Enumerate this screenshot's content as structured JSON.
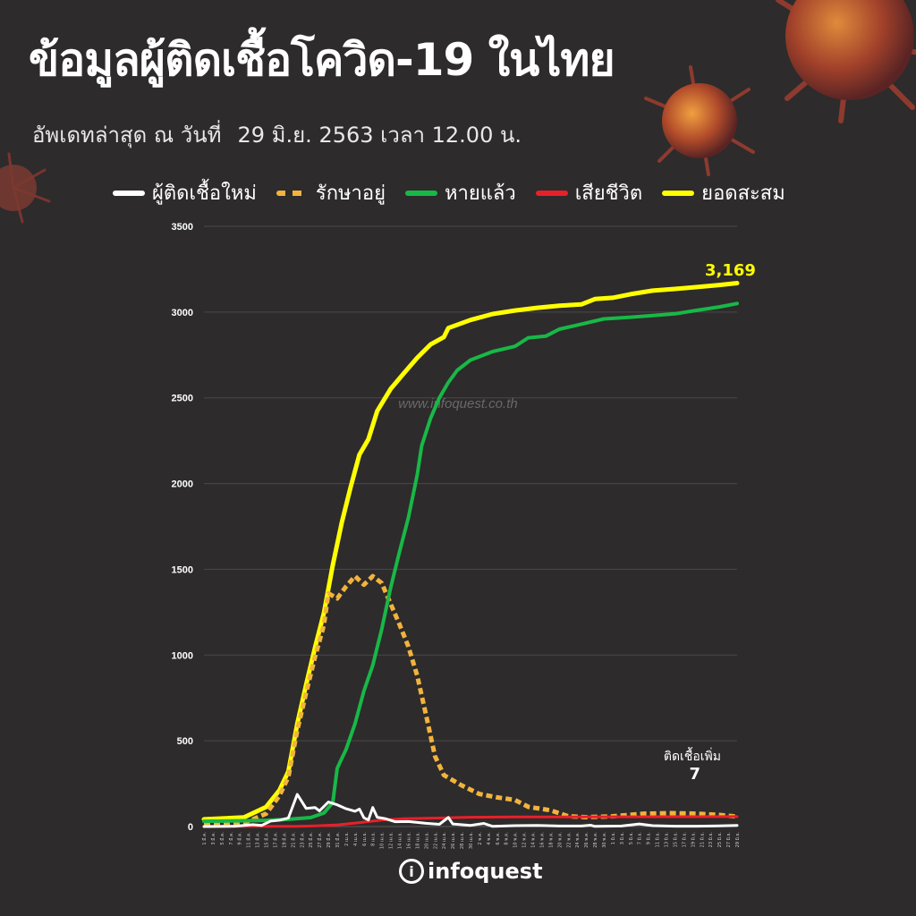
{
  "header": {
    "title": "ข้อมูลผู้ติดเชื้อโควิด-19 ในไทย",
    "update_label": "อัพเดทล่าสุด ณ วันที่",
    "update_value": "29 มิ.ย. 2563 เวลา 12.00 น."
  },
  "legend": [
    {
      "label": "ผู้ติดเชื้อใหม่",
      "color": "#ffffff",
      "style": "solid"
    },
    {
      "label": "รักษาอยู่",
      "color": "#f2b33d",
      "style": "dashed"
    },
    {
      "label": "หายแล้ว",
      "color": "#18b847",
      "style": "solid"
    },
    {
      "label": "เสียชีวิต",
      "color": "#e8202a",
      "style": "solid"
    },
    {
      "label": "ยอดสะสม",
      "color": "#ffff00",
      "style": "solid"
    }
  ],
  "annotations": {
    "total_value": "3,169",
    "new_cases_label": "ติดเชื้อเพิ่ม",
    "new_cases_value": "7"
  },
  "watermark": "www.infoquest.co.th",
  "logo": {
    "text": "infoquest",
    "icon": "i-circle-logo"
  },
  "chart_data": {
    "type": "line",
    "title": "",
    "xlabel": "",
    "ylabel": "",
    "ylim": [
      0,
      3500
    ],
    "yticks": [
      0,
      500,
      1000,
      1500,
      2000,
      2500,
      3000,
      3500
    ],
    "grid": "horizontal",
    "legend_position": "top",
    "x_range": [
      "1 มี.ค.",
      "29 มิ.ย."
    ],
    "x_tick_labels": [
      "1 มี.ค.",
      "3 มี.ค.",
      "5 มี.ค.",
      "7 มี.ค.",
      "9 มี.ค.",
      "11 มี.ค.",
      "13 มี.ค.",
      "15 มี.ค.",
      "17 มี.ค.",
      "19 มี.ค.",
      "21 มี.ค.",
      "23 มี.ค.",
      "25 มี.ค.",
      "27 มี.ค.",
      "29 มี.ค.",
      "31 มี.ค.",
      "2 เม.ย.",
      "4 เม.ย.",
      "6 เม.ย.",
      "8 เม.ย.",
      "10 เม.ย.",
      "12 เม.ย.",
      "14 เม.ย.",
      "16 เม.ย.",
      "18 เม.ย.",
      "20 เม.ย.",
      "22 เม.ย.",
      "24 เม.ย.",
      "26 เม.ย.",
      "28 เม.ย.",
      "30 เม.ย.",
      "2 พ.ค.",
      "4 พ.ค.",
      "6 พ.ค.",
      "8 พ.ค.",
      "10 พ.ค.",
      "12 พ.ค.",
      "14 พ.ค.",
      "16 พ.ค.",
      "18 พ.ค.",
      "20 พ.ค.",
      "22 พ.ค.",
      "24 พ.ค.",
      "26 พ.ค.",
      "28 พ.ค.",
      "30 พ.ค.",
      "1 มิ.ย.",
      "3 มิ.ย.",
      "5 มิ.ย.",
      "7 มิ.ย.",
      "9 มิ.ย.",
      "11 มิ.ย.",
      "13 มิ.ย.",
      "15 มิ.ย.",
      "17 มิ.ย.",
      "19 มิ.ย.",
      "21 มิ.ย.",
      "23 มิ.ย.",
      "25 มิ.ย.",
      "27 มิ.ย.",
      "29 มิ.ย."
    ],
    "series": [
      {
        "name": "ยอดสะสม",
        "color": "#ffff00",
        "dash": false,
        "width": 5,
        "points": [
          [
            "1 มี.ค.",
            42
          ],
          [
            "10 มี.ค.",
            53
          ],
          [
            "15 มี.ค.",
            114
          ],
          [
            "18 มี.ค.",
            212
          ],
          [
            "20 มี.ค.",
            322
          ],
          [
            "22 มี.ค.",
            599
          ],
          [
            "24 มี.ค.",
            827
          ],
          [
            "26 มี.ค.",
            1045
          ],
          [
            "28 มี.ค.",
            1245
          ],
          [
            "30 มี.ค.",
            1524
          ],
          [
            "1 เม.ย.",
            1771
          ],
          [
            "3 เม.ย.",
            1978
          ],
          [
            "5 เม.ย.",
            2169
          ],
          [
            "7 เม.ย.",
            2258
          ],
          [
            "9 เม.ย.",
            2423
          ],
          [
            "12 เม.ย.",
            2551
          ],
          [
            "15 เม.ย.",
            2643
          ],
          [
            "18 เม.ย.",
            2733
          ],
          [
            "21 เม.ย.",
            2811
          ],
          [
            "24 เม.ย.",
            2854
          ],
          [
            "25 เม.ย.",
            2907
          ],
          [
            "30 เม.ย.",
            2954
          ],
          [
            "5 พ.ค.",
            2989
          ],
          [
            "10 พ.ค.",
            3009
          ],
          [
            "15 พ.ค.",
            3025
          ],
          [
            "20 พ.ค.",
            3037
          ],
          [
            "25 พ.ค.",
            3045
          ],
          [
            "28 พ.ค.",
            3076
          ],
          [
            "1 มิ.ย.",
            3083
          ],
          [
            "5 มิ.ย.",
            3104
          ],
          [
            "10 มิ.ย.",
            3125
          ],
          [
            "15 มิ.ย.",
            3135
          ],
          [
            "20 มิ.ย.",
            3146
          ],
          [
            "25 มิ.ย.",
            3158
          ],
          [
            "29 มิ.ย.",
            3169
          ]
        ]
      },
      {
        "name": "รักษาอยู่",
        "color": "#f2b33d",
        "dash": true,
        "width": 5,
        "points": [
          [
            "1 มี.ค.",
            11
          ],
          [
            "10 มี.ค.",
            20
          ],
          [
            "15 มี.ค.",
            75
          ],
          [
            "18 มี.ค.",
            180
          ],
          [
            "20 มี.ค.",
            290
          ],
          [
            "22 มี.ค.",
            560
          ],
          [
            "24 มี.ค.",
            780
          ],
          [
            "26 มี.ค.",
            990
          ],
          [
            "28 มี.ค.",
            1175
          ],
          [
            "29 มี.ค.",
            1360
          ],
          [
            "31 มี.ค.",
            1330
          ],
          [
            "2 เม.ย.",
            1400
          ],
          [
            "4 เม.ย.",
            1460
          ],
          [
            "6 เม.ย.",
            1410
          ],
          [
            "8 เม.ย.",
            1460
          ],
          [
            "10 เม.ย.",
            1420
          ],
          [
            "12 เม.ย.",
            1300
          ],
          [
            "14 เม.ย.",
            1180
          ],
          [
            "16 เม.ย.",
            1050
          ],
          [
            "18 เม.ย.",
            880
          ],
          [
            "20 เม.ย.",
            650
          ],
          [
            "22 เม.ย.",
            410
          ],
          [
            "24 เม.ย.",
            300
          ],
          [
            "28 เม.ย.",
            240
          ],
          [
            "2 พ.ค.",
            190
          ],
          [
            "6 พ.ค.",
            170
          ],
          [
            "10 พ.ค.",
            155
          ],
          [
            "13 พ.ค.",
            115
          ],
          [
            "18 พ.ค.",
            95
          ],
          [
            "22 พ.ค.",
            60
          ],
          [
            "26 พ.ค.",
            55
          ],
          [
            "1 มิ.ย.",
            60
          ],
          [
            "8 มิ.ย.",
            75
          ],
          [
            "14 มิ.ย.",
            78
          ],
          [
            "20 มิ.ย.",
            75
          ],
          [
            "25 มิ.ย.",
            68
          ],
          [
            "29 มิ.ย.",
            58
          ]
        ]
      },
      {
        "name": "หายแล้ว",
        "color": "#18b847",
        "dash": false,
        "width": 4,
        "points": [
          [
            "1 มี.ค.",
            31
          ],
          [
            "15 มี.ค.",
            36
          ],
          [
            "20 มี.ค.",
            42
          ],
          [
            "25 มี.ค.",
            52
          ],
          [
            "28 มี.ค.",
            79
          ],
          [
            "30 มี.ค.",
            140
          ],
          [
            "31 มี.ค.",
            340
          ],
          [
            "2 เม.ย.",
            450
          ],
          [
            "4 เม.ย.",
            600
          ],
          [
            "6 เม.ย.",
            790
          ],
          [
            "8 เม.ย.",
            940
          ],
          [
            "10 เม.ย.",
            1150
          ],
          [
            "12 เม.ย.",
            1390
          ],
          [
            "14 เม.ย.",
            1600
          ],
          [
            "16 เม.ย.",
            1800
          ],
          [
            "18 เม.ย.",
            2050
          ],
          [
            "19 เม.ย.",
            2220
          ],
          [
            "21 เม.ย.",
            2380
          ],
          [
            "23 เม.ย.",
            2500
          ],
          [
            "25 เม.ย.",
            2590
          ],
          [
            "27 เม.ย.",
            2660
          ],
          [
            "30 เม.ย.",
            2720
          ],
          [
            "5 พ.ค.",
            2770
          ],
          [
            "10 พ.ค.",
            2800
          ],
          [
            "13 พ.ค.",
            2850
          ],
          [
            "17 พ.ค.",
            2860
          ],
          [
            "20 พ.ค.",
            2900
          ],
          [
            "25 พ.ค.",
            2930
          ],
          [
            "30 พ.ค.",
            2960
          ],
          [
            "5 มิ.ย.",
            2970
          ],
          [
            "10 มิ.ย.",
            2980
          ],
          [
            "15 มิ.ย.",
            2990
          ],
          [
            "20 มิ.ย.",
            3010
          ],
          [
            "25 มิ.ย.",
            3030
          ],
          [
            "29 มิ.ย.",
            3050
          ]
        ]
      },
      {
        "name": "เสียชีวิต",
        "color": "#e8202a",
        "dash": false,
        "width": 3,
        "points": [
          [
            "1 มี.ค.",
            0
          ],
          [
            "15 มี.ค.",
            1
          ],
          [
            "22 มี.ค.",
            1
          ],
          [
            "26 มี.ค.",
            4
          ],
          [
            "31 มี.ค.",
            10
          ],
          [
            "5 เม.ย.",
            23
          ],
          [
            "10 เม.ย.",
            38
          ],
          [
            "15 เม.ย.",
            46
          ],
          [
            "20 เม.ย.",
            48
          ],
          [
            "25 เม.ย.",
            51
          ],
          [
            "30 เม.ย.",
            54
          ],
          [
            "10 พ.ค.",
            56
          ],
          [
            "29 มิ.ย.",
            58
          ]
        ]
      },
      {
        "name": "ผู้ติดเชื้อใหม่",
        "color": "#ffffff",
        "dash": false,
        "width": 3,
        "points": [
          [
            "1 มี.ค.",
            0
          ],
          [
            "8 มี.ค.",
            2
          ],
          [
            "12 มี.ค.",
            11
          ],
          [
            "14 มี.ค.",
            7
          ],
          [
            "16 มี.ค.",
            32
          ],
          [
            "18 มี.ค.",
            37
          ],
          [
            "20 มี.ค.",
            50
          ],
          [
            "22 มี.ค.",
            188
          ],
          [
            "24 มี.ค.",
            106
          ],
          [
            "26 มี.ค.",
            111
          ],
          [
            "27 มี.ค.",
            91
          ],
          [
            "29 มี.ค.",
            143
          ],
          [
            "31 มี.ค.",
            127
          ],
          [
            "2 เม.ย.",
            104
          ],
          [
            "4 เม.ย.",
            89
          ],
          [
            "5 เม.ย.",
            102
          ],
          [
            "6 เม.ย.",
            51
          ],
          [
            "7 เม.ย.",
            38
          ],
          [
            "8 เม.ย.",
            111
          ],
          [
            "9 เม.ย.",
            54
          ],
          [
            "11 เม.ย.",
            45
          ],
          [
            "13 เม.ย.",
            28
          ],
          [
            "16 เม.ย.",
            29
          ],
          [
            "20 เม.ย.",
            19
          ],
          [
            "23 เม.ย.",
            13
          ],
          [
            "25 เม.ย.",
            53
          ],
          [
            "26 เม.ย.",
            15
          ],
          [
            "30 เม.ย.",
            7
          ],
          [
            "3 พ.ค.",
            18
          ],
          [
            "5 พ.ค.",
            1
          ],
          [
            "10 พ.ค.",
            5
          ],
          [
            "15 พ.ค.",
            7
          ],
          [
            "20 พ.ค.",
            3
          ],
          [
            "25 พ.ค.",
            3
          ],
          [
            "27 พ.ค.",
            8
          ],
          [
            "28 พ.ค.",
            1
          ],
          [
            "3 มิ.ย.",
            3
          ],
          [
            "7 มิ.ย.",
            15
          ],
          [
            "10 มิ.ย.",
            5
          ],
          [
            "15 มิ.ย.",
            2
          ],
          [
            "20 มิ.ย.",
            2
          ],
          [
            "25 มิ.ย.",
            4
          ],
          [
            "29 มิ.ย.",
            7
          ]
        ]
      }
    ]
  }
}
